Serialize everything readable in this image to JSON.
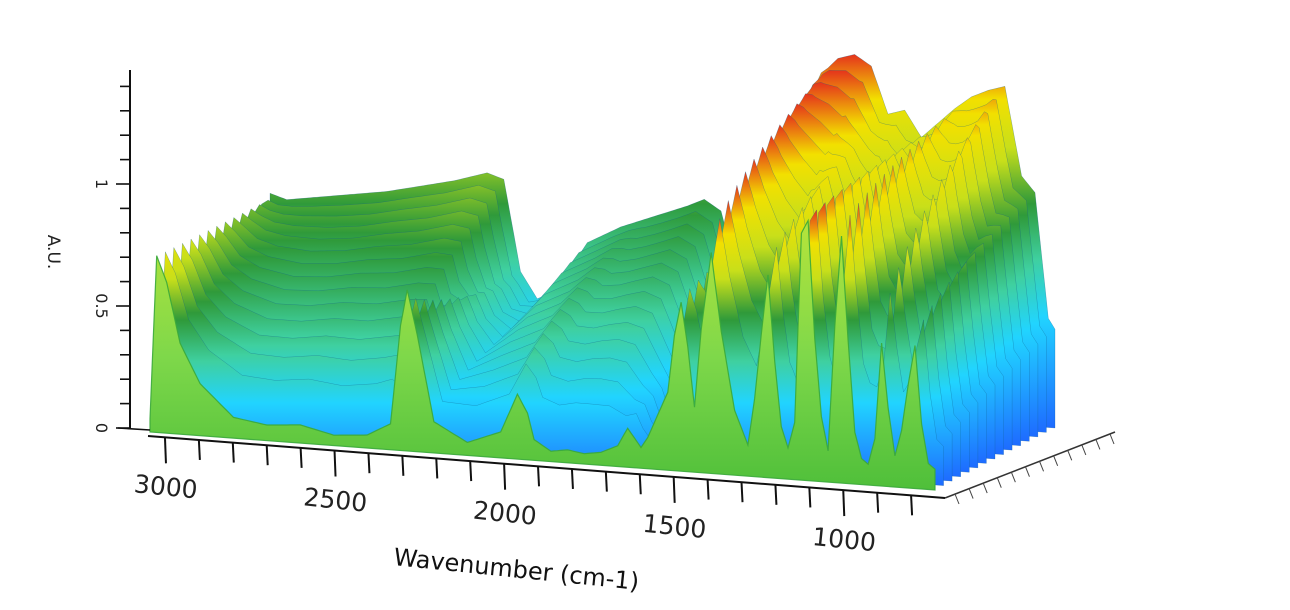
{
  "chart_data": {
    "type": "area",
    "view": "3d-waterfall-surface",
    "xlabel": "Wavenumber (cm-1)",
    "ylabel": "A.U.",
    "x_reversed": true,
    "xlim": [
      3050,
      700
    ],
    "ylim": [
      0,
      1.3
    ],
    "x_ticks": [
      {
        "value": 3000,
        "label": "3000"
      },
      {
        "value": 2500,
        "label": "2500"
      },
      {
        "value": 2000,
        "label": "2000"
      },
      {
        "value": 1500,
        "label": "1500"
      },
      {
        "value": 1000,
        "label": "1000"
      }
    ],
    "y_ticks": [
      {
        "value": 0,
        "label": "0"
      },
      {
        "value": 0.5,
        "label": "0.5"
      },
      {
        "value": 1,
        "label": "1"
      }
    ],
    "colorscale": [
      "#1e6bff",
      "#21d4ff",
      "#5ad64a",
      "#c8df1a",
      "#f2e000",
      "#f08a10",
      "#e5331c"
    ],
    "front_spectrum": {
      "x": [
        3050,
        3030,
        3000,
        2960,
        2900,
        2800,
        2700,
        2600,
        2500,
        2400,
        2330,
        2300,
        2280,
        2250,
        2200,
        2100,
        2000,
        1950,
        1920,
        1900,
        1850,
        1800,
        1750,
        1700,
        1650,
        1620,
        1580,
        1560,
        1500,
        1480,
        1460,
        1440,
        1420,
        1400,
        1370,
        1340,
        1300,
        1260,
        1240,
        1220,
        1200,
        1180,
        1160,
        1140,
        1120,
        1100,
        1080,
        1060,
        1040,
        1020,
        1000,
        980,
        960,
        940,
        920,
        900,
        880,
        860,
        840,
        820,
        800,
        780,
        760,
        740,
        720,
        700
      ],
      "y": [
        0.05,
        0.68,
        0.58,
        0.35,
        0.2,
        0.08,
        0.06,
        0.07,
        0.04,
        0.05,
        0.1,
        0.48,
        0.62,
        0.45,
        0.12,
        0.05,
        0.1,
        0.25,
        0.18,
        0.08,
        0.04,
        0.05,
        0.04,
        0.05,
        0.08,
        0.15,
        0.08,
        0.12,
        0.3,
        0.52,
        0.65,
        0.48,
        0.25,
        0.55,
        0.85,
        0.55,
        0.25,
        0.12,
        0.3,
        0.55,
        0.78,
        0.45,
        0.2,
        0.12,
        0.22,
        0.95,
        1.0,
        0.55,
        0.25,
        0.12,
        0.6,
        0.95,
        0.55,
        0.2,
        0.1,
        0.08,
        0.18,
        0.55,
        0.3,
        0.12,
        0.22,
        0.4,
        0.55,
        0.25,
        0.1,
        0.08
      ]
    },
    "back_surface": {
      "x": [
        3050,
        3000,
        2900,
        2800,
        2700,
        2600,
        2500,
        2400,
        2350,
        2300,
        2250,
        2200,
        2150,
        2100,
        2000,
        1900,
        1800,
        1750,
        1700,
        1650,
        1600,
        1560,
        1520,
        1500,
        1480,
        1450,
        1420,
        1400,
        1380,
        1350,
        1300,
        1250,
        1200,
        1150,
        1120,
        1100,
        1050,
        1000,
        950,
        900,
        850,
        800,
        760,
        740,
        720,
        700
      ],
      "y": [
        0.68,
        0.66,
        0.68,
        0.7,
        0.72,
        0.75,
        0.78,
        0.82,
        0.8,
        0.45,
        0.35,
        0.38,
        0.48,
        0.58,
        0.65,
        0.7,
        0.75,
        0.78,
        0.74,
        0.5,
        0.2,
        0.12,
        0.15,
        0.28,
        0.6,
        0.9,
        1.24,
        1.3,
        1.32,
        1.36,
        1.38,
        1.34,
        1.16,
        1.18,
        1.12,
        1.08,
        1.14,
        1.2,
        1.25,
        1.28,
        1.3,
        0.96,
        0.9,
        0.66,
        0.42,
        0.38
      ]
    }
  }
}
